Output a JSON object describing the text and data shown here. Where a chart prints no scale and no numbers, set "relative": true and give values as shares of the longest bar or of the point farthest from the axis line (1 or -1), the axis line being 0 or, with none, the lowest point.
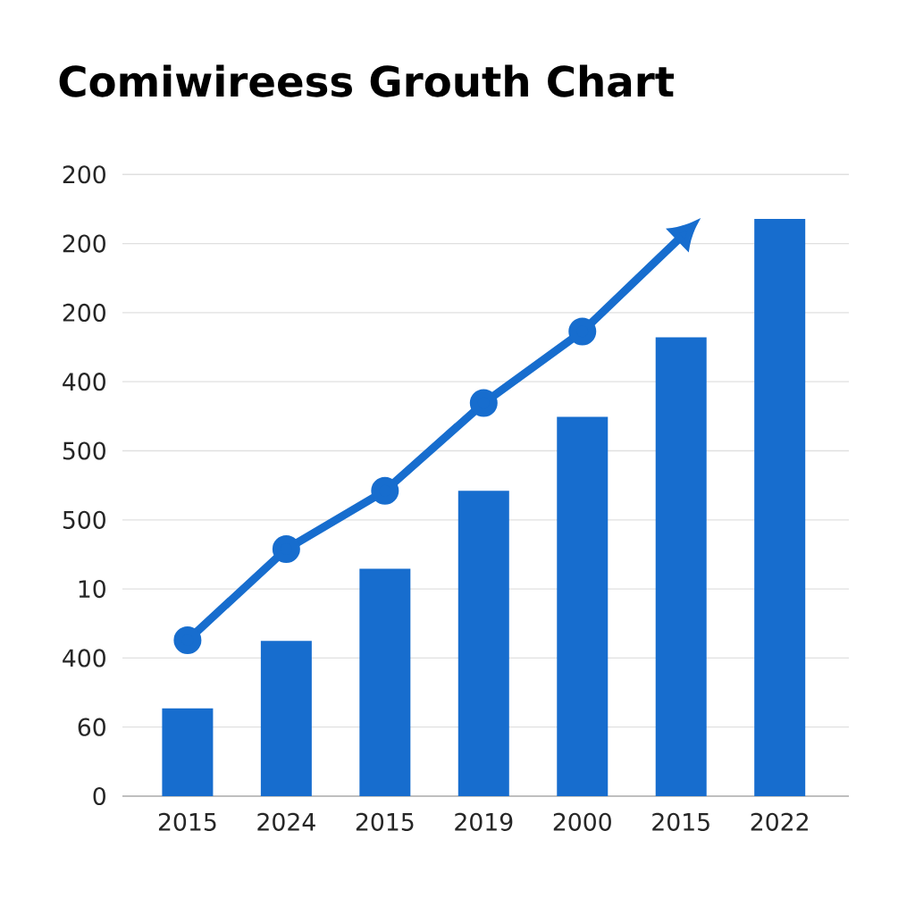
{
  "chart_data": {
    "type": "bar",
    "title": "Comiwireess Grouth Chart",
    "relative": true,
    "categories": [
      "2015",
      "2024",
      "2015",
      "2019",
      "2000",
      "2015",
      "2022"
    ],
    "series": [
      {
        "color": "#176dce",
        "values": [
          0.152,
          0.269,
          0.394,
          0.529,
          0.657,
          0.795,
          1
        ]
      },
      {
        "type": "line",
        "color": "#176dce",
        "marker": "circle",
        "values": [
          0.27,
          0.428,
          0.529,
          0.681,
          0.805,
          0.969,
          null
        ]
      }
    ],
    "annotations": [
      "200",
      "200",
      "200",
      "400",
      "500",
      "500",
      "10",
      "400",
      "60",
      "0"
    ],
    "grid": "y"
  }
}
